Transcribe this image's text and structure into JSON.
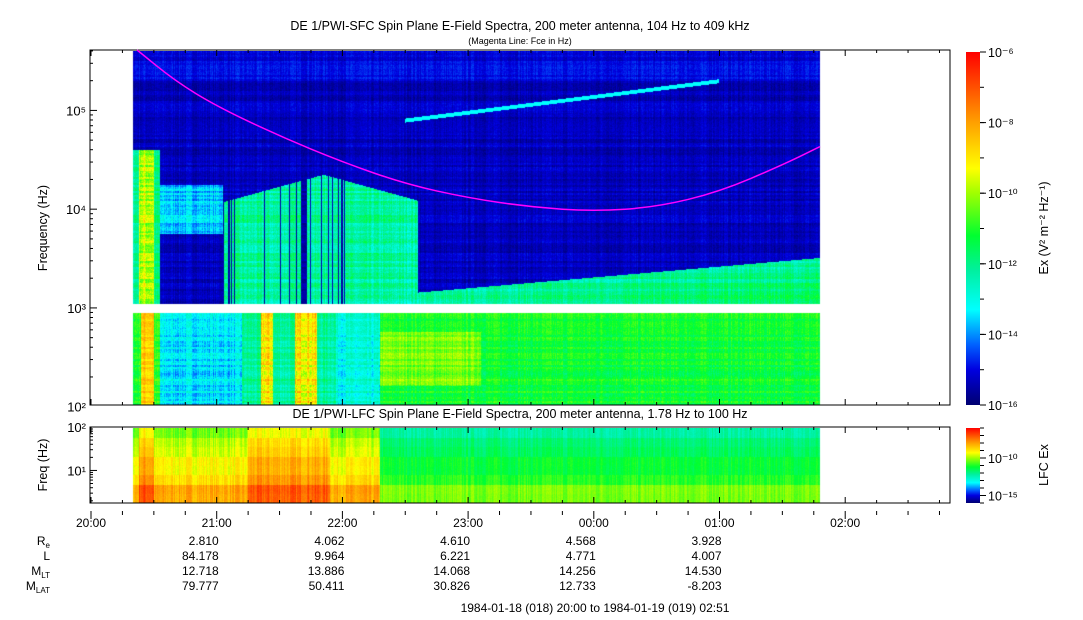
{
  "chart_data": [
    {
      "type": "heatmap",
      "title": "DE 1/PWI-SFC  Spin Plane E-Field Spectra, 200 meter antenna, 104 Hz to 409 kHz",
      "subtitle": "(Magenta Line: Fce in Hz)",
      "ylabel": "Frequency (Hz)",
      "yscale": "log",
      "ylim": [
        104,
        409000
      ],
      "yticks": [
        {
          "value": 100,
          "label": "10²"
        },
        {
          "value": 1000,
          "label": "10³"
        },
        {
          "value": 10000,
          "label": "10⁴"
        },
        {
          "value": 100000,
          "label": "10⁵"
        }
      ],
      "data_time_range": [
        "20:20",
        "01:48"
      ],
      "data_gap_hz": [
        880,
        1100
      ],
      "colorbar": {
        "label": "Ex (V² m⁻² Hz⁻¹)",
        "scale": "log",
        "range": [
          1e-16,
          1e-06
        ],
        "ticks": [
          {
            "value": 1e-16,
            "label": "10⁻¹⁶"
          },
          {
            "value": 1e-14,
            "label": "10⁻¹⁴"
          },
          {
            "value": 1e-12,
            "label": "10⁻¹²"
          },
          {
            "value": 1e-10,
            "label": "10⁻¹⁰"
          },
          {
            "value": 1e-08,
            "label": "10⁻⁸"
          },
          {
            "value": 1e-06,
            "label": "10⁻⁶"
          }
        ]
      },
      "fce_line": {
        "color": "#ff00ff",
        "points": [
          [
            "20:22",
            409000
          ],
          [
            "20:40",
            200000
          ],
          [
            "21:00",
            110000
          ],
          [
            "21:30",
            55000
          ],
          [
            "22:00",
            30000
          ],
          [
            "22:30",
            18000
          ],
          [
            "23:00",
            13000
          ],
          [
            "23:30",
            10500
          ],
          [
            "00:00",
            9500
          ],
          [
            "00:30",
            10500
          ],
          [
            "01:00",
            15000
          ],
          [
            "01:30",
            28000
          ],
          [
            "01:48",
            43000
          ]
        ]
      }
    },
    {
      "type": "heatmap",
      "title": "DE 1/PWI-LFC  Spin Plane E-Field Spectra, 200 meter antenna, 1.78 Hz to 100 Hz",
      "ylabel": "Freq (Hz)",
      "yscale": "log",
      "ylim": [
        1.78,
        100
      ],
      "yticks": [
        {
          "value": 10,
          "label": "10¹"
        },
        {
          "value": 100,
          "label": "10²"
        }
      ],
      "data_time_range": [
        "20:20",
        "01:48"
      ],
      "colorbar": {
        "label": "LFC Ex",
        "scale": "log",
        "range": [
          1e-16,
          1e-06
        ],
        "ticks": [
          {
            "value": 1e-15,
            "label": "10⁻¹⁵"
          },
          {
            "value": 1e-10,
            "label": "10⁻¹⁰"
          }
        ]
      }
    }
  ],
  "x_axis": {
    "range": [
      "20:00",
      "02:51"
    ],
    "ticks": [
      "20:00",
      "21:00",
      "22:00",
      "23:00",
      "00:00",
      "01:00",
      "02:00"
    ]
  },
  "ephemeris": {
    "rows": [
      {
        "label": "R",
        "sub": "e",
        "values": [
          "2.810",
          "4.062",
          "4.610",
          "4.568",
          "3.928"
        ]
      },
      {
        "label": "L",
        "sub": "",
        "values": [
          "84.178",
          "9.964",
          "6.221",
          "4.771",
          "4.007"
        ]
      },
      {
        "label": "M",
        "sub": "LT",
        "values": [
          "12.718",
          "13.886",
          "14.068",
          "14.256",
          "14.530"
        ]
      },
      {
        "label": "M",
        "sub": "LAT",
        "values": [
          "79.777",
          "50.411",
          "30.826",
          "12.733",
          "-8.203"
        ]
      }
    ]
  },
  "footer": "1984-01-18 (018) 20:00 to 1984-01-19 (019) 02:51"
}
